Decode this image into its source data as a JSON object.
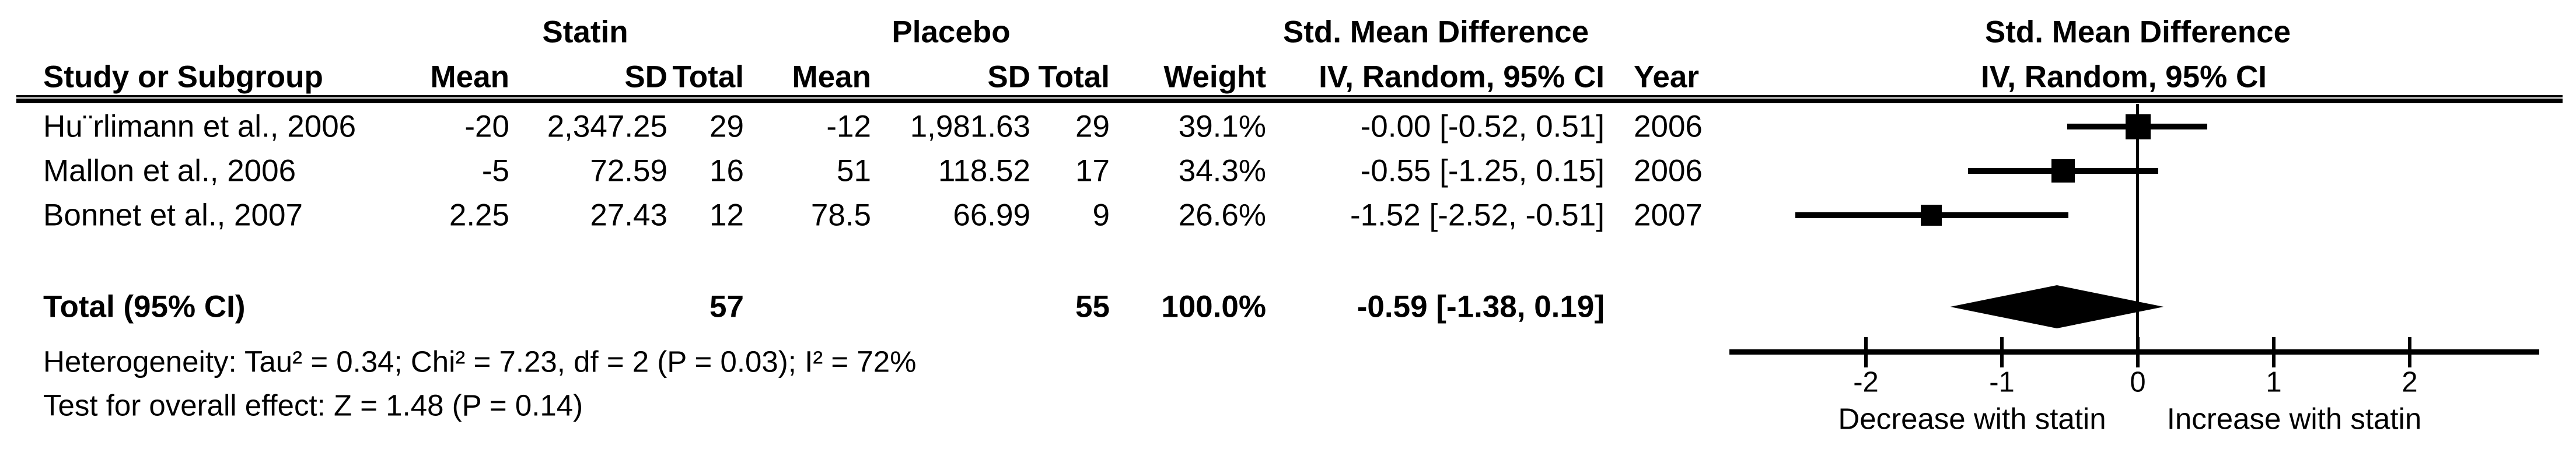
{
  "figure": {
    "group_headers": {
      "statin": "Statin",
      "placebo": "Placebo",
      "smd_left": "Std. Mean Difference"
    },
    "plot_header": {
      "line1": "Std. Mean Difference",
      "line2": "IV, Random, 95% CI"
    },
    "columns": [
      {
        "key": "study",
        "label": "Study or Subgroup"
      },
      {
        "key": "mean_statin",
        "label": "Mean"
      },
      {
        "key": "sd_statin",
        "label": "SD"
      },
      {
        "key": "total_statin",
        "label": "Total"
      },
      {
        "key": "mean_placebo",
        "label": "Mean"
      },
      {
        "key": "sd_placebo",
        "label": "SD"
      },
      {
        "key": "total_placebo",
        "label": "Total"
      },
      {
        "key": "weight",
        "label": "Weight"
      },
      {
        "key": "ci_text",
        "label": "IV, Random, 95% CI"
      },
      {
        "key": "year",
        "label": "Year"
      }
    ],
    "rows": [
      {
        "study": "Hu¨rlimann et al., 2006",
        "mean_statin": "-20",
        "sd_statin": "2,347.25",
        "total_statin": "29",
        "mean_placebo": "-12",
        "sd_placebo": "1,981.63",
        "total_placebo": "29",
        "weight": "39.1%",
        "ci_text": "-0.00 [-0.52, 0.51]",
        "year": "2006"
      },
      {
        "study": "Mallon et al., 2006",
        "mean_statin": "-5",
        "sd_statin": "72.59",
        "total_statin": "16",
        "mean_placebo": "51",
        "sd_placebo": "118.52",
        "total_placebo": "17",
        "weight": "34.3%",
        "ci_text": "-0.55 [-1.25, 0.15]",
        "year": "2006"
      },
      {
        "study": "Bonnet et al., 2007",
        "mean_statin": "2.25",
        "sd_statin": "27.43",
        "total_statin": "12",
        "mean_placebo": "78.5",
        "sd_placebo": "66.99",
        "total_placebo": "9",
        "weight": "26.6%",
        "ci_text": "-1.52 [-2.52, -0.51]",
        "year": "2007"
      }
    ],
    "total_row": {
      "label": "Total (95% CI)",
      "total_statin": "57",
      "total_placebo": "55",
      "weight": "100.0%",
      "ci_text": "-0.59 [-1.38, 0.19]"
    },
    "footnotes": {
      "heterogeneity": "Heterogeneity: Tau² = 0.34; Chi² = 7.23, df = 2 (P = 0.03); I² = 72%",
      "overall_effect": "Test for overall effect: Z = 1.48 (P = 0.14)"
    }
  },
  "chart_data": {
    "type": "forest",
    "title": "Std. Mean Difference",
    "effect_measure": "IV, Random, 95% CI",
    "studies": [
      {
        "name": "Hu¨rlimann et al., 2006",
        "year": 2006,
        "smd": -0.0,
        "ci_low": -0.52,
        "ci_high": 0.51,
        "weight_pct": 39.1
      },
      {
        "name": "Mallon et al., 2006",
        "year": 2006,
        "smd": -0.55,
        "ci_low": -1.25,
        "ci_high": 0.15,
        "weight_pct": 34.3
      },
      {
        "name": "Bonnet et al., 2007",
        "year": 2007,
        "smd": -1.52,
        "ci_low": -2.52,
        "ci_high": -0.51,
        "weight_pct": 26.6
      }
    ],
    "total": {
      "label": "Total (95% CI)",
      "smd": -0.59,
      "ci_low": -1.38,
      "ci_high": 0.19,
      "weight_pct": 100.0
    },
    "axis": {
      "ticks": [
        -2,
        -1,
        0,
        1,
        2
      ],
      "zero_line": 0,
      "min": -2.5,
      "max": 2.5
    },
    "x_labels": {
      "left": "Decrease with statin",
      "right": "Increase with statin"
    },
    "heterogeneity": {
      "tau2": 0.34,
      "chi2": 7.23,
      "df": 2,
      "p": 0.03,
      "i2_pct": 72
    },
    "overall_effect": {
      "z": 1.48,
      "p": 0.14
    }
  },
  "colors": {
    "ink": "#000000",
    "background": "#ffffff"
  }
}
